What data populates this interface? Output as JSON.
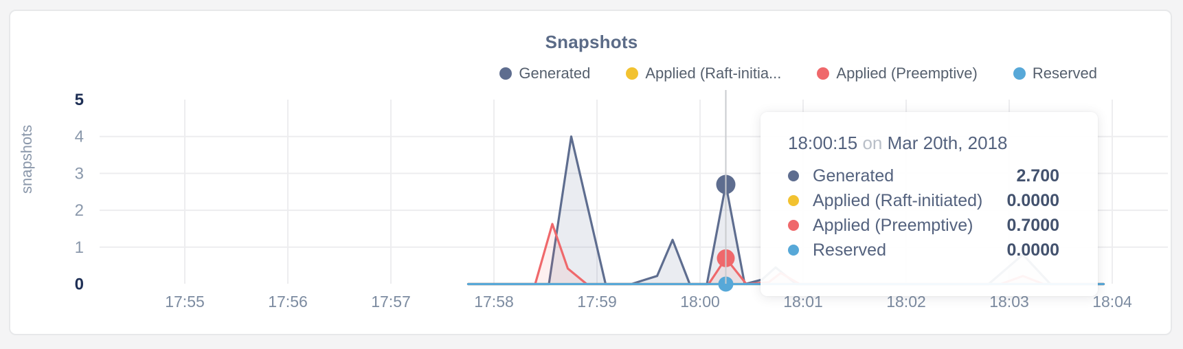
{
  "chart": {
    "title": "Snapshots",
    "y_axis_label": "snapshots",
    "legend": {
      "items": [
        {
          "label": "Generated",
          "color": "#5e6d8f"
        },
        {
          "label": "Applied (Raft-initia...",
          "color": "#f2c230"
        },
        {
          "label": "Applied (Preemptive)",
          "color": "#ef686b"
        },
        {
          "label": "Reserved",
          "color": "#57a8d8"
        }
      ]
    }
  },
  "tooltip": {
    "time": "18:00:15",
    "conjunction": "on",
    "date": "Mar 20th, 2018",
    "rows": [
      {
        "label": "Generated",
        "color": "#5e6d8f",
        "value": "2.700"
      },
      {
        "label": "Applied (Raft-initiated)",
        "color": "#f2c230",
        "value": "0.0000"
      },
      {
        "label": "Applied (Preemptive)",
        "color": "#ef686b",
        "value": "0.7000"
      },
      {
        "label": "Reserved",
        "color": "#57a8d8",
        "value": "0.0000"
      }
    ]
  },
  "chart_data": {
    "type": "area",
    "title": "Snapshots",
    "xlabel": "",
    "ylabel": "snapshots",
    "ylim": [
      0,
      5
    ],
    "grid": true,
    "legend_position": "top-right",
    "x_tick_labels": [
      "17:55",
      "17:56",
      "17:57",
      "17:58",
      "17:59",
      "18:00",
      "18:01",
      "18:02",
      "18:03",
      "18:04"
    ],
    "y_tick_values": [
      0,
      1,
      2,
      3,
      4,
      5
    ],
    "series": [
      {
        "name": "Generated",
        "color": "#5e6d8f",
        "fill": "rgba(94,109,143,0.13)",
        "points": [
          [
            "17:57:45",
            0
          ],
          [
            "17:58:32",
            0
          ],
          [
            "17:58:45",
            4.0
          ],
          [
            "17:59:05",
            0
          ],
          [
            "17:59:20",
            0
          ],
          [
            "17:59:28",
            0.12
          ],
          [
            "17:59:35",
            0.22
          ],
          [
            "17:59:44",
            1.2
          ],
          [
            "17:59:54",
            0
          ],
          [
            "18:00:04",
            0
          ],
          [
            "18:00:15",
            2.7
          ],
          [
            "18:00:26",
            0
          ],
          [
            "18:00:36",
            0.12
          ],
          [
            "18:00:44",
            0.45
          ],
          [
            "18:00:56",
            0
          ],
          [
            "18:02:48",
            0
          ],
          [
            "18:03:08",
            0.8
          ],
          [
            "18:03:24",
            0
          ],
          [
            "18:03:55",
            0
          ]
        ]
      },
      {
        "name": "Applied (Raft-initiated)",
        "color": "#f2c230",
        "fill": null,
        "points": [
          [
            "17:57:45",
            0
          ],
          [
            "18:03:55",
            0
          ]
        ]
      },
      {
        "name": "Applied (Preemptive)",
        "color": "#ef686b",
        "fill": "rgba(239,104,107,0.10)",
        "points": [
          [
            "17:57:45",
            0
          ],
          [
            "17:58:24",
            0
          ],
          [
            "17:58:34",
            1.63
          ],
          [
            "17:58:43",
            0.42
          ],
          [
            "17:58:54",
            0
          ],
          [
            "18:00:05",
            0
          ],
          [
            "18:00:15",
            0.7
          ],
          [
            "18:00:27",
            0
          ],
          [
            "18:00:40",
            0.05
          ],
          [
            "18:00:47",
            0.3
          ],
          [
            "18:00:58",
            0
          ],
          [
            "18:02:55",
            0
          ],
          [
            "18:03:08",
            0.22
          ],
          [
            "18:03:20",
            0
          ],
          [
            "18:03:55",
            0
          ]
        ]
      },
      {
        "name": "Reserved",
        "color": "#57a8d8",
        "fill": null,
        "points": [
          [
            "17:57:45",
            0
          ],
          [
            "18:03:55",
            0
          ]
        ]
      }
    ],
    "hover": {
      "time": "18:00:15",
      "date": "Mar 20th, 2018",
      "values": [
        2.7,
        0.0,
        0.7,
        0.0
      ]
    },
    "colors": {
      "grid": "#ededef",
      "crosshair": "#c9cbcf",
      "tick_label": "#7c8ba0",
      "tick_label_bold": "#1e2f55"
    }
  }
}
